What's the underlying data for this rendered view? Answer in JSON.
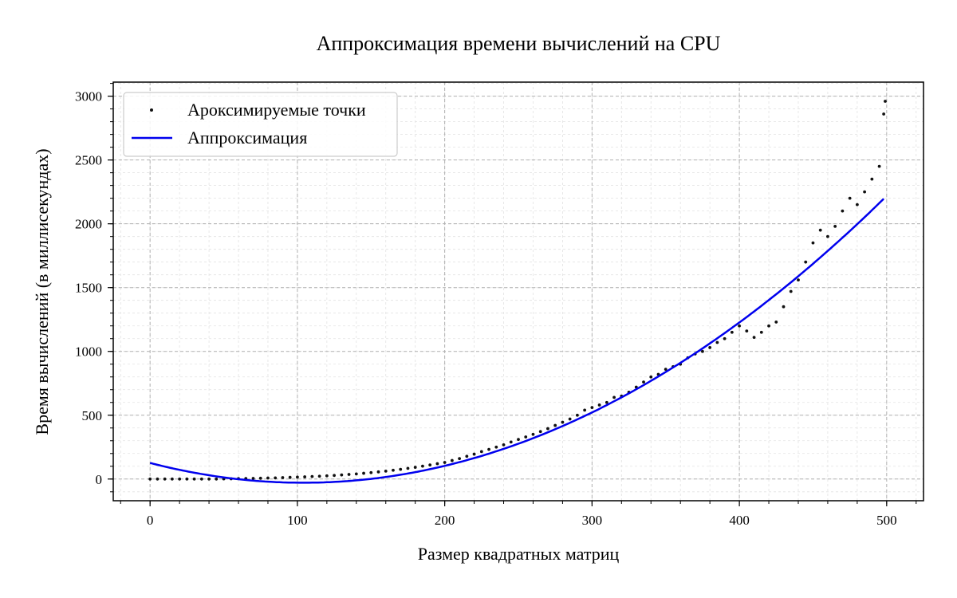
{
  "chart_data": {
    "type": "scatter",
    "title": "Аппроксимация времени вычислений на CPU",
    "xlabel": "Размер квадратных матриц",
    "ylabel": "Время вычислений (в миллисекундах)",
    "xlim": [
      -25,
      525
    ],
    "ylim": [
      -170,
      3110
    ],
    "x_ticks": [
      0,
      100,
      200,
      300,
      400,
      500
    ],
    "y_ticks": [
      0,
      500,
      1000,
      1500,
      2000,
      2500,
      3000
    ],
    "x_minor_step": 20,
    "y_minor_step": 100,
    "grid": true,
    "minor_grid": true,
    "legend_position": "upper-left",
    "colors": {
      "points": "#111111",
      "fit_line": "#0000ee",
      "major_grid": "#b0b0b0",
      "minor_grid": "#e2e2e2"
    },
    "series": [
      {
        "name": "Ароксимируемые точки",
        "type": "scatter",
        "points": [
          [
            0,
            0
          ],
          [
            5,
            0
          ],
          [
            10,
            0
          ],
          [
            15,
            0
          ],
          [
            20,
            0
          ],
          [
            25,
            0
          ],
          [
            30,
            0
          ],
          [
            35,
            0
          ],
          [
            40,
            0
          ],
          [
            45,
            0
          ],
          [
            50,
            1
          ],
          [
            55,
            2
          ],
          [
            60,
            3
          ],
          [
            65,
            4
          ],
          [
            70,
            5
          ],
          [
            75,
            6
          ],
          [
            80,
            8
          ],
          [
            85,
            9
          ],
          [
            90,
            11
          ],
          [
            95,
            13
          ],
          [
            100,
            15
          ],
          [
            105,
            17
          ],
          [
            110,
            20
          ],
          [
            115,
            22
          ],
          [
            120,
            25
          ],
          [
            125,
            28
          ],
          [
            130,
            32
          ],
          [
            135,
            36
          ],
          [
            140,
            40
          ],
          [
            145,
            45
          ],
          [
            150,
            50
          ],
          [
            155,
            56
          ],
          [
            160,
            62
          ],
          [
            165,
            69
          ],
          [
            170,
            76
          ],
          [
            175,
            84
          ],
          [
            180,
            92
          ],
          [
            185,
            101
          ],
          [
            190,
            110
          ],
          [
            195,
            120
          ],
          [
            200,
            130
          ],
          [
            205,
            145
          ],
          [
            210,
            160
          ],
          [
            215,
            178
          ],
          [
            220,
            195
          ],
          [
            225,
            215
          ],
          [
            230,
            232
          ],
          [
            235,
            250
          ],
          [
            240,
            268
          ],
          [
            245,
            290
          ],
          [
            250,
            310
          ],
          [
            255,
            330
          ],
          [
            260,
            350
          ],
          [
            265,
            372
          ],
          [
            270,
            395
          ],
          [
            275,
            420
          ],
          [
            280,
            445
          ],
          [
            285,
            470
          ],
          [
            290,
            500
          ],
          [
            295,
            540
          ],
          [
            300,
            560
          ],
          [
            305,
            580
          ],
          [
            310,
            600
          ],
          [
            315,
            640
          ],
          [
            320,
            650
          ],
          [
            325,
            680
          ],
          [
            330,
            720
          ],
          [
            335,
            760
          ],
          [
            340,
            800
          ],
          [
            345,
            820
          ],
          [
            350,
            860
          ],
          [
            355,
            880
          ],
          [
            360,
            900
          ],
          [
            365,
            950
          ],
          [
            370,
            980
          ],
          [
            375,
            1000
          ],
          [
            380,
            1030
          ],
          [
            385,
            1070
          ],
          [
            390,
            1100
          ],
          [
            395,
            1150
          ],
          [
            400,
            1200
          ],
          [
            405,
            1160
          ],
          [
            410,
            1110
          ],
          [
            415,
            1150
          ],
          [
            420,
            1200
          ],
          [
            425,
            1230
          ],
          [
            430,
            1350
          ],
          [
            435,
            1470
          ],
          [
            440,
            1560
          ],
          [
            445,
            1700
          ],
          [
            450,
            1850
          ],
          [
            455,
            1950
          ],
          [
            460,
            1900
          ],
          [
            465,
            1980
          ],
          [
            470,
            2100
          ],
          [
            475,
            2200
          ],
          [
            480,
            2150
          ],
          [
            485,
            2250
          ],
          [
            490,
            2350
          ],
          [
            495,
            2450
          ],
          [
            498,
            2860
          ],
          [
            499,
            2960
          ]
        ]
      },
      {
        "name": "Аппроксимация",
        "type": "line",
        "coefficients": [
          0.01433,
          -2.98,
          126
        ]
      }
    ]
  }
}
